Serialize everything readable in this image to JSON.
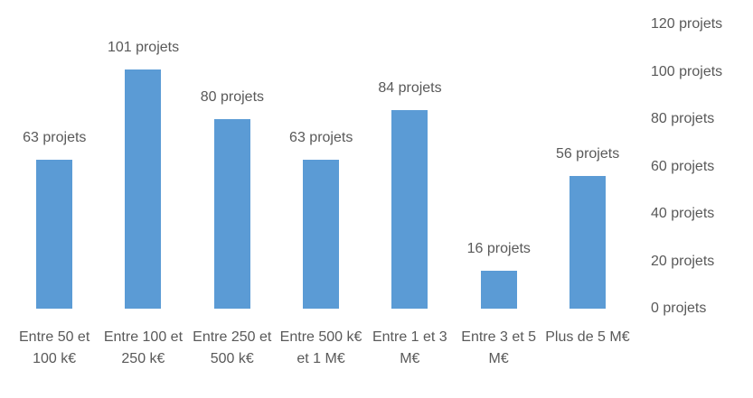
{
  "chart_data": {
    "type": "bar",
    "categories": [
      "Entre 50 et 100 k€",
      "Entre 100 et 250 k€",
      "Entre 250 et 500 k€",
      "Entre 500 k€ et 1 M€",
      "Entre 1 et 3 M€",
      "Entre 3 et 5 M€",
      "Plus de 5 M€"
    ],
    "values": [
      63,
      101,
      80,
      63,
      84,
      16,
      56
    ],
    "value_labels": [
      "63 projets",
      "101 projets",
      "80 projets",
      "63 projets",
      "84 projets",
      "16 projets",
      "56 projets"
    ],
    "color": "#5b9bd5",
    "ylim": [
      0,
      120
    ],
    "yticks": [
      {
        "value": 0,
        "label": "0 projets"
      },
      {
        "value": 20,
        "label": "20 projets"
      },
      {
        "value": 40,
        "label": "40 projets"
      },
      {
        "value": 60,
        "label": "60 projets"
      },
      {
        "value": 80,
        "label": "80 projets"
      },
      {
        "value": 100,
        "label": "100 projets"
      },
      {
        "value": 120,
        "label": "120 projets"
      }
    ],
    "grid": false
  }
}
